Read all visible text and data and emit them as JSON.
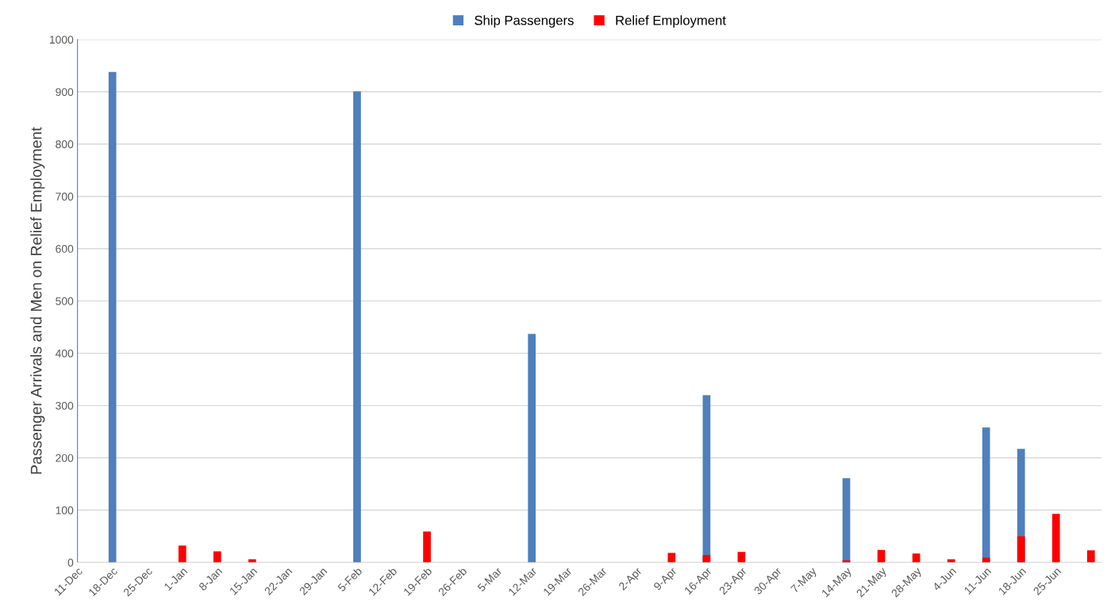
{
  "chart_data": {
    "type": "bar",
    "ylabel": "Passenger Arrivals and Men on Relief Employment",
    "categories": [
      "11-Dec",
      "18-Dec",
      "25-Dec",
      "1-Jan",
      "8-Jan",
      "15-Jan",
      "22-Jan",
      "29-Jan",
      "5-Feb",
      "12-Feb",
      "19-Feb",
      "26-Feb",
      "5-Mar",
      "12-Mar",
      "19-Mar",
      "26-Mar",
      "2-Apr",
      "9-Apr",
      "16-Apr",
      "23-Apr",
      "30-Apr",
      "7-May",
      "14-May",
      "21-May",
      "28-May",
      "4-Jun",
      "11-Jun",
      "18-Jun",
      "25-Jun",
      null
    ],
    "series": [
      {
        "name": "Ship Passengers",
        "color": "#4f7fbc",
        "values": [
          null,
          938,
          null,
          null,
          null,
          null,
          null,
          null,
          901,
          null,
          null,
          null,
          null,
          437,
          null,
          null,
          null,
          null,
          320,
          null,
          null,
          null,
          161,
          null,
          null,
          null,
          258,
          217,
          null,
          null
        ]
      },
      {
        "name": "Relief Employment",
        "color": "#ff0000",
        "values": [
          null,
          null,
          null,
          32,
          21,
          6,
          null,
          null,
          null,
          null,
          59,
          null,
          null,
          null,
          null,
          null,
          null,
          18,
          14,
          20,
          null,
          null,
          4,
          24,
          17,
          6,
          9,
          50,
          93,
          23
        ]
      }
    ],
    "ylim": [
      0,
      1000
    ],
    "yticks": [
      0,
      100,
      200,
      300,
      400,
      500,
      600,
      700,
      800,
      900,
      1000
    ],
    "grid": "y",
    "legend": "top"
  }
}
